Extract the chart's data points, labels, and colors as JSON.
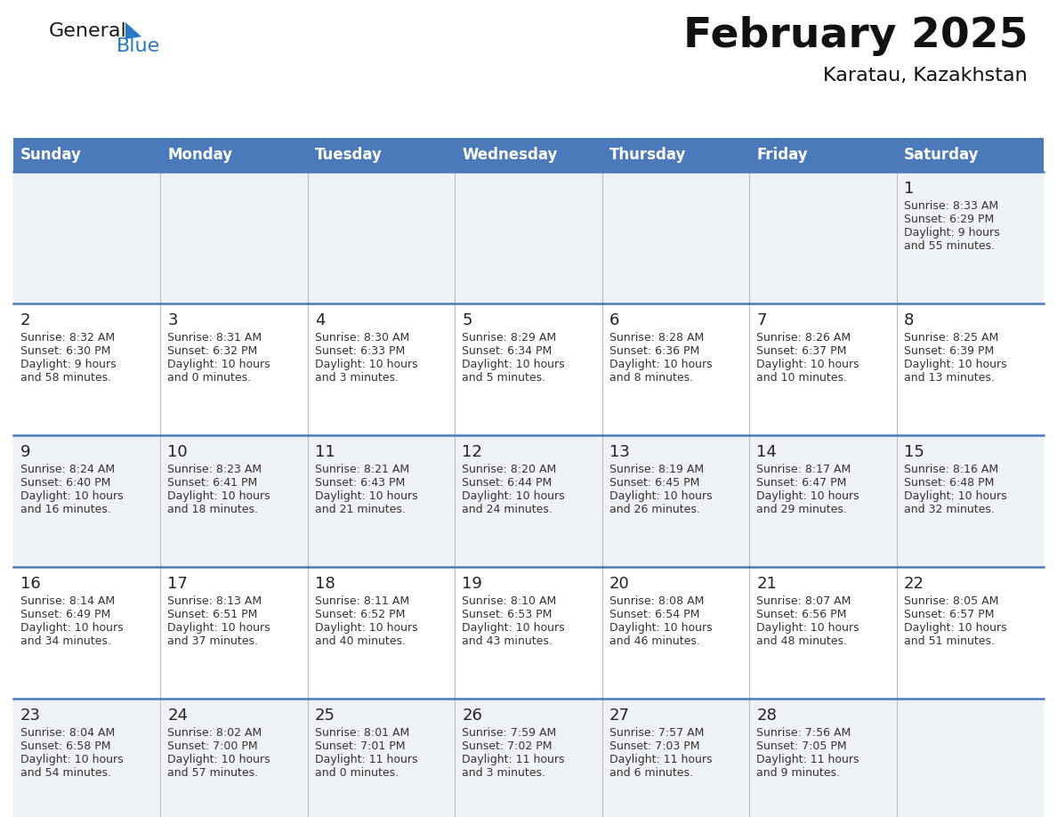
{
  "title": "February 2025",
  "subtitle": "Karatau, Kazakhstan",
  "days_of_week": [
    "Sunday",
    "Monday",
    "Tuesday",
    "Wednesday",
    "Thursday",
    "Friday",
    "Saturday"
  ],
  "header_bg": "#4a7aba",
  "header_text": "#ffffff",
  "cell_border": "#4a7aba",
  "row_bg_alt": "#eef1f5",
  "row_bg_normal": "#ffffff",
  "day_num_color": "#222222",
  "info_text_color": "#333333",
  "logo_general_color": "#1a1a1a",
  "logo_blue_color": "#2979c0",
  "calendar_data": [
    [
      null,
      null,
      null,
      null,
      null,
      null,
      {
        "day": 1,
        "sunrise": "8:33 AM",
        "sunset": "6:29 PM",
        "daylight_line1": "9 hours",
        "daylight_line2": "and 55 minutes."
      }
    ],
    [
      {
        "day": 2,
        "sunrise": "8:32 AM",
        "sunset": "6:30 PM",
        "daylight_line1": "9 hours",
        "daylight_line2": "and 58 minutes."
      },
      {
        "day": 3,
        "sunrise": "8:31 AM",
        "sunset": "6:32 PM",
        "daylight_line1": "10 hours",
        "daylight_line2": "and 0 minutes."
      },
      {
        "day": 4,
        "sunrise": "8:30 AM",
        "sunset": "6:33 PM",
        "daylight_line1": "10 hours",
        "daylight_line2": "and 3 minutes."
      },
      {
        "day": 5,
        "sunrise": "8:29 AM",
        "sunset": "6:34 PM",
        "daylight_line1": "10 hours",
        "daylight_line2": "and 5 minutes."
      },
      {
        "day": 6,
        "sunrise": "8:28 AM",
        "sunset": "6:36 PM",
        "daylight_line1": "10 hours",
        "daylight_line2": "and 8 minutes."
      },
      {
        "day": 7,
        "sunrise": "8:26 AM",
        "sunset": "6:37 PM",
        "daylight_line1": "10 hours",
        "daylight_line2": "and 10 minutes."
      },
      {
        "day": 8,
        "sunrise": "8:25 AM",
        "sunset": "6:39 PM",
        "daylight_line1": "10 hours",
        "daylight_line2": "and 13 minutes."
      }
    ],
    [
      {
        "day": 9,
        "sunrise": "8:24 AM",
        "sunset": "6:40 PM",
        "daylight_line1": "10 hours",
        "daylight_line2": "and 16 minutes."
      },
      {
        "day": 10,
        "sunrise": "8:23 AM",
        "sunset": "6:41 PM",
        "daylight_line1": "10 hours",
        "daylight_line2": "and 18 minutes."
      },
      {
        "day": 11,
        "sunrise": "8:21 AM",
        "sunset": "6:43 PM",
        "daylight_line1": "10 hours",
        "daylight_line2": "and 21 minutes."
      },
      {
        "day": 12,
        "sunrise": "8:20 AM",
        "sunset": "6:44 PM",
        "daylight_line1": "10 hours",
        "daylight_line2": "and 24 minutes."
      },
      {
        "day": 13,
        "sunrise": "8:19 AM",
        "sunset": "6:45 PM",
        "daylight_line1": "10 hours",
        "daylight_line2": "and 26 minutes."
      },
      {
        "day": 14,
        "sunrise": "8:17 AM",
        "sunset": "6:47 PM",
        "daylight_line1": "10 hours",
        "daylight_line2": "and 29 minutes."
      },
      {
        "day": 15,
        "sunrise": "8:16 AM",
        "sunset": "6:48 PM",
        "daylight_line1": "10 hours",
        "daylight_line2": "and 32 minutes."
      }
    ],
    [
      {
        "day": 16,
        "sunrise": "8:14 AM",
        "sunset": "6:49 PM",
        "daylight_line1": "10 hours",
        "daylight_line2": "and 34 minutes."
      },
      {
        "day": 17,
        "sunrise": "8:13 AM",
        "sunset": "6:51 PM",
        "daylight_line1": "10 hours",
        "daylight_line2": "and 37 minutes."
      },
      {
        "day": 18,
        "sunrise": "8:11 AM",
        "sunset": "6:52 PM",
        "daylight_line1": "10 hours",
        "daylight_line2": "and 40 minutes."
      },
      {
        "day": 19,
        "sunrise": "8:10 AM",
        "sunset": "6:53 PM",
        "daylight_line1": "10 hours",
        "daylight_line2": "and 43 minutes."
      },
      {
        "day": 20,
        "sunrise": "8:08 AM",
        "sunset": "6:54 PM",
        "daylight_line1": "10 hours",
        "daylight_line2": "and 46 minutes."
      },
      {
        "day": 21,
        "sunrise": "8:07 AM",
        "sunset": "6:56 PM",
        "daylight_line1": "10 hours",
        "daylight_line2": "and 48 minutes."
      },
      {
        "day": 22,
        "sunrise": "8:05 AM",
        "sunset": "6:57 PM",
        "daylight_line1": "10 hours",
        "daylight_line2": "and 51 minutes."
      }
    ],
    [
      {
        "day": 23,
        "sunrise": "8:04 AM",
        "sunset": "6:58 PM",
        "daylight_line1": "10 hours",
        "daylight_line2": "and 54 minutes."
      },
      {
        "day": 24,
        "sunrise": "8:02 AM",
        "sunset": "7:00 PM",
        "daylight_line1": "10 hours",
        "daylight_line2": "and 57 minutes."
      },
      {
        "day": 25,
        "sunrise": "8:01 AM",
        "sunset": "7:01 PM",
        "daylight_line1": "11 hours",
        "daylight_line2": "and 0 minutes."
      },
      {
        "day": 26,
        "sunrise": "7:59 AM",
        "sunset": "7:02 PM",
        "daylight_line1": "11 hours",
        "daylight_line2": "and 3 minutes."
      },
      {
        "day": 27,
        "sunrise": "7:57 AM",
        "sunset": "7:03 PM",
        "daylight_line1": "11 hours",
        "daylight_line2": "and 6 minutes."
      },
      {
        "day": 28,
        "sunrise": "7:56 AM",
        "sunset": "7:05 PM",
        "daylight_line1": "11 hours",
        "daylight_line2": "and 9 minutes."
      },
      null
    ]
  ]
}
